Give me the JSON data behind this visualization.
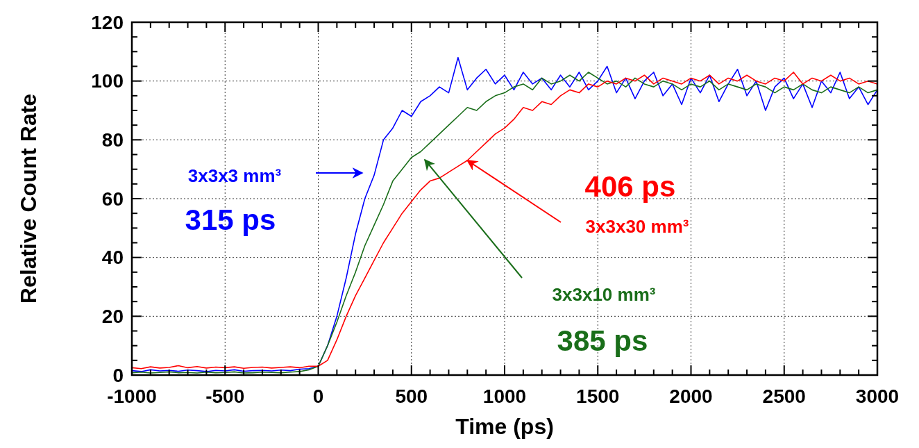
{
  "chart_data": {
    "type": "line",
    "xlabel": "Time (ps)",
    "ylabel": "Relative Count Rate",
    "x": [
      -1000,
      -950,
      -900,
      -850,
      -800,
      -750,
      -700,
      -650,
      -600,
      -550,
      -500,
      -450,
      -400,
      -350,
      -300,
      -250,
      -200,
      -150,
      -100,
      -50,
      0,
      50,
      100,
      150,
      200,
      250,
      300,
      350,
      400,
      450,
      500,
      550,
      600,
      650,
      700,
      750,
      800,
      850,
      900,
      950,
      1000,
      1050,
      1100,
      1150,
      1200,
      1250,
      1300,
      1350,
      1400,
      1450,
      1500,
      1550,
      1600,
      1650,
      1700,
      1750,
      1800,
      1850,
      1900,
      1950,
      2000,
      2050,
      2100,
      2150,
      2200,
      2250,
      2300,
      2350,
      2400,
      2450,
      2500,
      2550,
      2600,
      2650,
      2700,
      2750,
      2800,
      2850,
      2900,
      2950,
      3000
    ],
    "series": [
      {
        "color": "#0000ff",
        "values": [
          1.5,
          1.2,
          1.8,
          1.4,
          1.6,
          1.3,
          1.7,
          1.5,
          1.2,
          1.6,
          1.4,
          1.8,
          1.3,
          1.5,
          1.6,
          1.4,
          1.7,
          1.5,
          2.0,
          2.2,
          3,
          10,
          20,
          33,
          48,
          60,
          68,
          80,
          84,
          90,
          88,
          93,
          95,
          98,
          96,
          108,
          97,
          101,
          104,
          99,
          102,
          97,
          103,
          99,
          101,
          97,
          102,
          98,
          103,
          97,
          100,
          105,
          96,
          101,
          94,
          100,
          103,
          95,
          99,
          92,
          101,
          96,
          102,
          93,
          99,
          104,
          95,
          100,
          90,
          98,
          101,
          94,
          99,
          91,
          100,
          96,
          103,
          94,
          98,
          92,
          97
        ]
      },
      {
        "color": "#1a6e1a",
        "values": [
          0.8,
          1.0,
          0.7,
          0.9,
          1.1,
          0.8,
          0.9,
          0.7,
          1.0,
          0.8,
          0.9,
          1.1,
          0.7,
          0.8,
          1.0,
          0.9,
          0.8,
          1.0,
          1.2,
          1.8,
          3,
          10,
          18,
          27,
          35,
          44,
          51,
          58,
          66,
          70,
          74,
          76,
          79,
          82,
          85,
          88,
          91,
          90,
          93,
          95,
          96,
          98,
          99,
          97,
          101,
          99,
          100,
          102,
          100,
          103,
          101,
          99,
          100,
          98,
          101,
          99,
          98,
          100,
          99,
          97,
          99,
          98,
          100,
          97,
          99,
          98,
          97,
          99,
          98,
          96,
          98,
          97,
          99,
          97,
          96,
          98,
          97,
          96,
          98,
          96,
          97
        ]
      },
      {
        "color": "#ff0000",
        "values": [
          2.5,
          2.2,
          2.8,
          2.4,
          2.6,
          3.2,
          2.5,
          2.9,
          2.4,
          2.7,
          2.5,
          2.8,
          2.3,
          2.6,
          2.7,
          2.4,
          2.6,
          2.8,
          2.5,
          3.0,
          3,
          5,
          12,
          20,
          27,
          33,
          39,
          45,
          50,
          55,
          59,
          63,
          66,
          67,
          69,
          71,
          73,
          76,
          79,
          82,
          84,
          87,
          91,
          90,
          93,
          92,
          95,
          97,
          96,
          99,
          98,
          100,
          99,
          101,
          100,
          102,
          99,
          101,
          100,
          99,
          101,
          100,
          102,
          99,
          101,
          100,
          102,
          100,
          99,
          101,
          100,
          103,
          99,
          101,
          100,
          102,
          100,
          101,
          99,
          100,
          99
        ]
      }
    ],
    "annotations": [
      "3x3x3 mm³",
      "315 ps",
      "3x3x10 mm³",
      "385 ps",
      {
        "text": "406 ps",
        "x": 800,
        "y": 73
      },
      "3x3x30 mm³"
    ],
    "xlim": [
      -1000,
      3000
    ],
    "ylim": [
      0,
      120
    ],
    "xticks": [
      -1000,
      {
        "value": -900,
        "label": null
      },
      {
        "value": -800,
        "label": null
      },
      {
        "value": -700,
        "label": null
      },
      {
        "value": -600,
        "label": null
      },
      -500,
      {
        "value": -400,
        "label": null
      },
      {
        "value": -300,
        "label": null
      },
      {
        "value": -200,
        "label": null
      },
      {
        "value": -100,
        "label": null
      },
      0,
      {
        "value": 100,
        "label": null
      },
      {
        "value": 200,
        "label": null
      },
      {
        "value": 300,
        "label": null
      },
      {
        "value": 400,
        "label": null
      },
      500,
      {
        "value": 600,
        "label": null
      },
      {
        "value": 700,
        "label": null
      },
      {
        "value": 800,
        "label": null
      },
      {
        "value": 900,
        "label": null
      },
      1000,
      {
        "value": 1100,
        "label": null
      },
      {
        "value": 1200,
        "label": null
      },
      {
        "value": 1300,
        "label": null
      },
      {
        "value": 1400,
        "label": null
      },
      1500,
      {
        "value": 1600,
        "label": null
      },
      {
        "value": 1700,
        "label": null
      },
      {
        "value": 1800,
        "label": null
      },
      {
        "value": 1900,
        "label": null
      },
      2000,
      {
        "value": 2100,
        "label": null
      },
      {
        "value": 2200,
        "label": null
      },
      {
        "value": 2300,
        "label": null
      },
      {
        "value": 2400,
        "label": null
      },
      2500,
      {
        "value": 2600,
        "label": null
      },
      {
        "value": 2700,
        "label": null
      },
      {
        "value": 2800,
        "label": null
      },
      {
        "value": 2900,
        "label": null
      },
      3000
    ],
    "yticks": [
      0,
      {
        "value": 5,
        "label": null
      },
      {
        "value": 10,
        "label": null
      },
      {
        "value": 15,
        "label": null
      },
      20,
      {
        "value": 25,
        "label": null
      },
      {
        "value": 30,
        "label": null
      },
      {
        "value": 35,
        "label": null
      },
      40,
      {
        "value": 45,
        "label": null
      },
      {
        "value": 50,
        "label": null
      },
      {
        "value": 55,
        "label": null
      },
      60,
      {
        "value": 65,
        "label": null
      },
      {
        "value": 70,
        "label": null
      },
      {
        "value": 75,
        "label": null
      },
      80,
      {
        "value": 85,
        "label": null
      },
      {
        "value": 90,
        "label": null
      },
      {
        "value": 95,
        "label": null
      },
      100,
      {
        "value": 105,
        "label": null
      },
      {
        "value": 110,
        "label": null
      },
      {
        "value": 115,
        "label": null
      },
      120
    ],
    "grid": true
  }
}
